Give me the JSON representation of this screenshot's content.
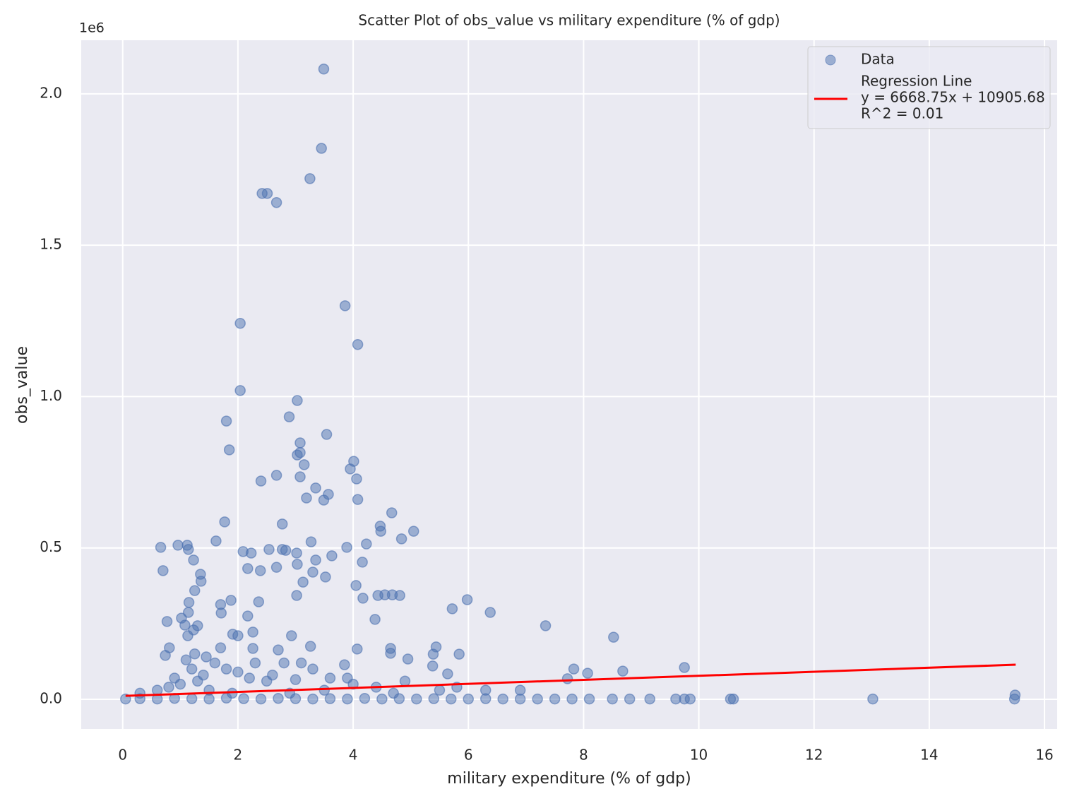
{
  "chart_data": {
    "type": "scatter",
    "title": "Scatter Plot of obs_value vs military expenditure (% of gdp)",
    "x_label": "military expenditure (% of gdp)",
    "y_label": "obs_value",
    "y_offset_label": "1e6",
    "xlim": [
      -0.72,
      16.22
    ],
    "ylim": [
      -98000,
      2177000
    ],
    "xticks": [
      0,
      2,
      4,
      6,
      8,
      10,
      12,
      14,
      16
    ],
    "yticks": [
      {
        "value": 0,
        "label": "0.0"
      },
      {
        "value": 500000,
        "label": "0.5"
      },
      {
        "value": 1000000,
        "label": "1.0"
      },
      {
        "value": 1500000,
        "label": "1.5"
      },
      {
        "value": 2000000,
        "label": "2.0"
      }
    ],
    "grid": true,
    "legend": "upper right",
    "series": [
      {
        "name": "Data",
        "color": "#4c72b0",
        "x": [
          3.49,
          3.45,
          3.25,
          2.42,
          2.51,
          2.67,
          3.86,
          2.04,
          4.08,
          2.04,
          3.03,
          2.89,
          1.8,
          3.54,
          1.85,
          3.08,
          3.03,
          3.08,
          4.01,
          3.15,
          3.95,
          2.67,
          3.08,
          4.06,
          2.4,
          3.35,
          3.57,
          3.19,
          3.49,
          4.08,
          4.67,
          1.77,
          2.77,
          4.47,
          4.48,
          5.05,
          4.84,
          1.62,
          3.27,
          4.23,
          0.66,
          0.96,
          1.12,
          1.14,
          3.89,
          2.09,
          2.23,
          2.54,
          2.77,
          2.83,
          3.02,
          3.63,
          1.23,
          3.35,
          4.16,
          3.03,
          2.67,
          2.17,
          0.7,
          2.39,
          3.3,
          1.35,
          3.52,
          3.13,
          1.36,
          4.05,
          1.25,
          3.02,
          4.43,
          4.55,
          4.68,
          4.81,
          4.17,
          5.98,
          1.88,
          1.15,
          2.36,
          1.7,
          5.72,
          1.14,
          1.71,
          6.38,
          1.02,
          2.17,
          4.38,
          0.77,
          1.08,
          1.3,
          7.34,
          1.23,
          2.26,
          1.91,
          2.0,
          2.93,
          1.13,
          8.52,
          3.26,
          5.44,
          0.81,
          2.26,
          4.07,
          4.65,
          2.7,
          4.65,
          5.84,
          5.39,
          0.74,
          4.95,
          5.38,
          3.85,
          9.75,
          7.83,
          8.68,
          8.07,
          5.64,
          7.72,
          1.0,
          1.2,
          1.4,
          1.6,
          1.8,
          1.1,
          1.3,
          2.0,
          2.2,
          2.5,
          0.8,
          0.6,
          1.5,
          2.8,
          3.1,
          3.3,
          3.6,
          3.9,
          4.4,
          4.9,
          5.5,
          6.3,
          6.9,
          1.7,
          1.25,
          1.45,
          0.9,
          2.3,
          2.6,
          3.0,
          4.0,
          5.8,
          4.7,
          3.5,
          2.9,
          1.9,
          0.3,
          0.05,
          0.3,
          0.6,
          0.9,
          1.2,
          1.5,
          1.8,
          2.1,
          2.4,
          2.7,
          3.0,
          3.3,
          3.6,
          3.9,
          4.2,
          4.5,
          4.8,
          5.1,
          5.4,
          5.7,
          6.0,
          6.3,
          6.6,
          6.9,
          7.2,
          7.5,
          7.8,
          8.1,
          8.5,
          8.8,
          9.15,
          9.6,
          9.75,
          9.85,
          10.55,
          10.6,
          13.02,
          15.48,
          15.49
        ],
        "values": [
          2082000,
          1820000,
          1720000,
          1671000,
          1671000,
          1641000,
          1300000,
          1242000,
          1172000,
          1020000,
          987000,
          933000,
          919000,
          875000,
          824000,
          847000,
          807000,
          815000,
          786000,
          775000,
          761000,
          740000,
          735000,
          728000,
          721000,
          698000,
          677000,
          665000,
          658000,
          660000,
          616000,
          586000,
          579000,
          572000,
          555000,
          555000,
          530000,
          523000,
          520000,
          513000,
          502000,
          509000,
          509000,
          495000,
          502000,
          488000,
          483000,
          495000,
          495000,
          492000,
          483000,
          474000,
          460000,
          460000,
          453000,
          446000,
          436000,
          432000,
          425000,
          425000,
          420000,
          413000,
          404000,
          387000,
          390000,
          376000,
          359000,
          343000,
          343000,
          345000,
          345000,
          343000,
          334000,
          329000,
          327000,
          320000,
          322000,
          313000,
          299000,
          287000,
          285000,
          287000,
          268000,
          275000,
          264000,
          257000,
          245000,
          243000,
          243000,
          229000,
          222000,
          215000,
          210000,
          210000,
          210000,
          205000,
          175000,
          173000,
          170000,
          168000,
          166000,
          168000,
          163000,
          152000,
          149000,
          149000,
          145000,
          133000,
          110000,
          114000,
          105000,
          100000,
          93000,
          86000,
          84000,
          68000,
          50000,
          100000,
          80000,
          120000,
          100000,
          130000,
          60000,
          90000,
          70000,
          60000,
          40000,
          30000,
          30000,
          120000,
          120000,
          100000,
          70000,
          70000,
          40000,
          60000,
          30000,
          30000,
          30000,
          170000,
          150000,
          140000,
          70000,
          120000,
          80000,
          65000,
          50000,
          40000,
          20000,
          30000,
          20000,
          20000,
          20000,
          1000,
          2000,
          1000,
          3000,
          2000,
          1000,
          4000,
          2000,
          1000,
          3000,
          2000,
          1000,
          2000,
          1000,
          3000,
          1000,
          2000,
          1000,
          2000,
          1000,
          1000,
          2000,
          1000,
          1000,
          1000,
          1000,
          1000,
          1000,
          1000,
          1000,
          1000,
          1000,
          1000,
          1000,
          1000,
          1000,
          1000,
          1000,
          14000
        ]
      },
      {
        "name": "Regression Line",
        "equation": "y = 6668.75x + 10905.68",
        "r2_label": "R^2 = 0.01",
        "color": "#ff0000",
        "x": [
          0.05,
          15.5
        ],
        "values": [
          11239.12,
          114271.31
        ]
      }
    ]
  }
}
